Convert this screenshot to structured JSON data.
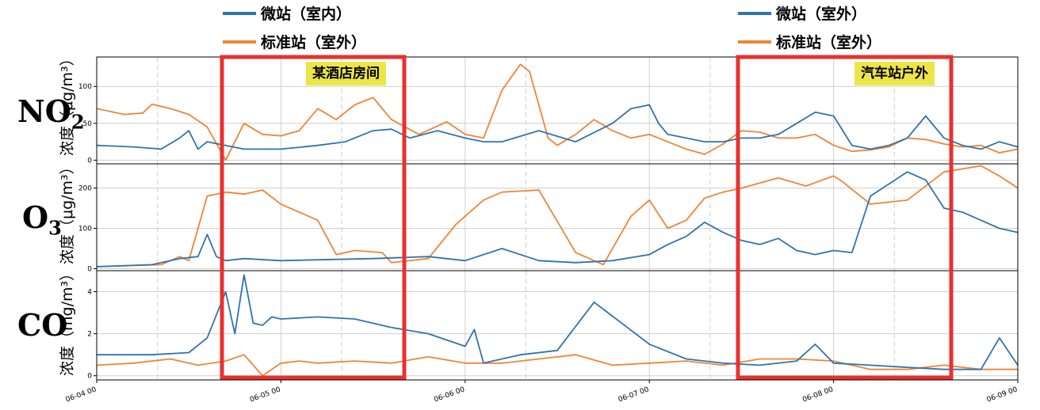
{
  "legend": [
    {
      "items": [
        {
          "name": "微站（室内）",
          "color": "#2f73b0"
        },
        {
          "name": "标准站（室外）",
          "color": "#ef8535"
        }
      ]
    },
    {
      "items": [
        {
          "name": "微站（室外）",
          "color": "#2f73b0"
        },
        {
          "name": "标准站（室外）",
          "color": "#ef8535"
        }
      ]
    }
  ],
  "panels": [
    {
      "label": "NO",
      "label_sub": "2",
      "unit": "浓度（μg/m³）"
    },
    {
      "label": "O",
      "label_sub": "3",
      "unit": "浓度（μg/m³）"
    },
    {
      "label": "CO",
      "label_sub": "",
      "unit": "浓度（mg/m³）"
    }
  ],
  "annotations": [
    {
      "text": "某酒店房间"
    },
    {
      "text": "汽车站户外"
    }
  ],
  "colors": {
    "micro": "#2f73b0",
    "standard": "#ef8535",
    "highlight": "#e8312f",
    "note_bg": "#ece54a"
  },
  "chart_data": [
    {
      "type": "line",
      "title": "NO2",
      "ylabel": "浓度（μg/m³）",
      "ylim": [
        -5,
        140
      ],
      "yticks": [
        0,
        50,
        100
      ],
      "xlim": [
        0,
        5
      ],
      "xticklabels": [
        "06-04 00",
        "06-05 00",
        "06-06 00",
        "06-07 00",
        "06-08 00",
        "06-09 00"
      ],
      "grid": true,
      "series": [
        {
          "name": "标准站（室外）",
          "x": [
            0,
            0.15,
            0.25,
            0.3,
            0.4,
            0.5,
            0.6,
            0.7,
            0.8,
            0.9,
            1.0,
            1.1,
            1.2,
            1.3,
            1.4,
            1.5,
            1.6,
            1.75,
            1.9,
            2.0,
            2.1,
            2.2,
            2.3,
            2.35,
            2.45,
            2.5,
            2.6,
            2.7,
            2.8,
            2.9,
            3.0,
            3.1,
            3.2,
            3.3,
            3.4,
            3.5,
            3.6,
            3.7,
            3.8,
            3.9,
            4.0,
            4.1,
            4.2,
            4.3,
            4.4,
            4.5,
            4.6,
            4.7,
            4.8,
            4.9,
            5.0
          ],
          "values": [
            70,
            62,
            64,
            76,
            70,
            62,
            45,
            0,
            50,
            35,
            33,
            40,
            70,
            55,
            75,
            85,
            55,
            35,
            52,
            35,
            30,
            95,
            130,
            120,
            30,
            20,
            35,
            55,
            40,
            30,
            35,
            25,
            15,
            8,
            22,
            40,
            38,
            30,
            30,
            35,
            20,
            12,
            14,
            18,
            30,
            28,
            22,
            18,
            20,
            10,
            15
          ]
        },
        {
          "name": "微站",
          "x": [
            0,
            0.2,
            0.35,
            0.45,
            0.5,
            0.55,
            0.6,
            0.7,
            0.8,
            1.0,
            1.2,
            1.35,
            1.5,
            1.6,
            1.7,
            1.85,
            2.0,
            2.1,
            2.2,
            2.4,
            2.6,
            2.8,
            2.9,
            3.0,
            3.05,
            3.1,
            3.2,
            3.3,
            3.4,
            3.5,
            3.6,
            3.7,
            3.8,
            3.9,
            4.0,
            4.1,
            4.2,
            4.3,
            4.4,
            4.5,
            4.6,
            4.7,
            4.8,
            4.9,
            5.0
          ],
          "values": [
            20,
            18,
            15,
            30,
            40,
            15,
            25,
            20,
            15,
            15,
            20,
            25,
            40,
            42,
            30,
            40,
            30,
            25,
            25,
            40,
            25,
            50,
            70,
            75,
            50,
            35,
            30,
            25,
            25,
            30,
            30,
            35,
            50,
            65,
            60,
            20,
            15,
            20,
            30,
            60,
            30,
            20,
            15,
            25,
            18
          ]
        }
      ]
    },
    {
      "type": "line",
      "title": "O3",
      "ylabel": "浓度（μg/m³）",
      "ylim": [
        -5,
        260
      ],
      "yticks": [
        0,
        100,
        200
      ],
      "xlim": [
        0,
        5
      ],
      "xticklabels": [
        "06-04 00",
        "06-05 00",
        "06-06 00",
        "06-07 00",
        "06-08 00",
        "06-09 00"
      ],
      "grid": true,
      "series": [
        {
          "name": "标准站（室外）",
          "x": [
            0,
            0.35,
            0.45,
            0.5,
            0.6,
            0.7,
            0.8,
            0.9,
            1.0,
            1.2,
            1.3,
            1.4,
            1.55,
            1.6,
            1.8,
            1.95,
            2.1,
            2.2,
            2.4,
            2.6,
            2.75,
            2.9,
            3.0,
            3.1,
            3.2,
            3.3,
            3.4,
            3.5,
            3.7,
            3.85,
            4.0,
            4.05,
            4.2,
            4.4,
            4.6,
            4.8,
            4.9,
            5.0
          ],
          "values": [
            5,
            10,
            30,
            20,
            180,
            190,
            185,
            195,
            160,
            120,
            35,
            45,
            40,
            15,
            25,
            110,
            170,
            190,
            195,
            40,
            10,
            130,
            170,
            100,
            120,
            175,
            190,
            200,
            225,
            205,
            230,
            215,
            160,
            170,
            240,
            255,
            230,
            200
          ]
        },
        {
          "name": "微站",
          "x": [
            0,
            0.3,
            0.45,
            0.55,
            0.6,
            0.65,
            0.7,
            0.8,
            1.0,
            1.5,
            1.8,
            2.0,
            2.2,
            2.4,
            2.6,
            2.8,
            3.0,
            3.1,
            3.2,
            3.3,
            3.4,
            3.5,
            3.6,
            3.7,
            3.8,
            3.9,
            4.0,
            4.1,
            4.2,
            4.3,
            4.4,
            4.5,
            4.6,
            4.7,
            4.8,
            4.9,
            5.0
          ],
          "values": [
            5,
            10,
            25,
            30,
            85,
            30,
            20,
            25,
            20,
            25,
            30,
            20,
            50,
            20,
            15,
            20,
            35,
            60,
            80,
            115,
            90,
            70,
            60,
            75,
            45,
            35,
            45,
            40,
            180,
            210,
            240,
            220,
            150,
            140,
            120,
            100,
            90
          ]
        }
      ]
    },
    {
      "type": "line",
      "title": "CO",
      "ylabel": "浓度（mg/m³）",
      "ylim": [
        -0.2,
        5
      ],
      "yticks": [
        0,
        2,
        4
      ],
      "xlim": [
        0,
        5
      ],
      "xticklabels": [
        "06-04 00",
        "06-05 00",
        "06-06 00",
        "06-07 00",
        "06-08 00",
        "06-09 00"
      ],
      "grid": true,
      "series": [
        {
          "name": "标准站（室外）",
          "x": [
            0,
            0.2,
            0.4,
            0.55,
            0.7,
            0.8,
            0.9,
            1.0,
            1.1,
            1.2,
            1.4,
            1.6,
            1.8,
            2.0,
            2.2,
            2.4,
            2.6,
            2.8,
            3.0,
            3.2,
            3.4,
            3.6,
            3.8,
            4.0,
            4.2,
            4.4,
            4.6,
            4.8,
            5.0
          ],
          "values": [
            0.5,
            0.6,
            0.8,
            0.5,
            0.7,
            1.0,
            0.0,
            0.6,
            0.7,
            0.6,
            0.7,
            0.6,
            0.9,
            0.6,
            0.6,
            0.8,
            1.0,
            0.5,
            0.6,
            0.7,
            0.5,
            0.8,
            0.8,
            0.7,
            0.3,
            0.3,
            0.5,
            0.3,
            0.3
          ]
        },
        {
          "name": "微站",
          "x": [
            0,
            0.3,
            0.5,
            0.6,
            0.7,
            0.75,
            0.8,
            0.85,
            0.9,
            0.95,
            1.0,
            1.2,
            1.4,
            1.6,
            1.8,
            2.0,
            2.05,
            2.1,
            2.3,
            2.5,
            2.7,
            2.85,
            3.0,
            3.2,
            3.4,
            3.6,
            3.8,
            3.9,
            4.0,
            4.2,
            4.4,
            4.6,
            4.8,
            4.9,
            5.0
          ],
          "values": [
            1.0,
            1.0,
            1.1,
            1.8,
            4.0,
            2.0,
            4.8,
            2.5,
            2.4,
            2.8,
            2.7,
            2.8,
            2.7,
            2.3,
            2.0,
            1.4,
            2.2,
            0.6,
            1.0,
            1.2,
            3.5,
            2.5,
            1.5,
            0.8,
            0.6,
            0.5,
            0.7,
            1.5,
            0.6,
            0.5,
            0.4,
            0.3,
            0.3,
            1.8,
            0.5
          ]
        }
      ]
    }
  ]
}
